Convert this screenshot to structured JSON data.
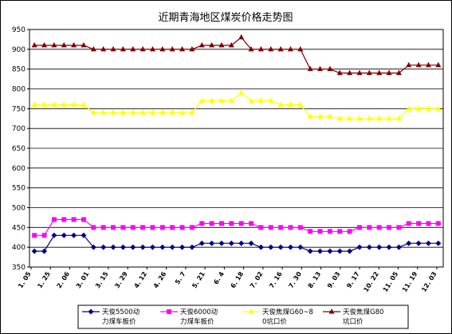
{
  "chart_data": {
    "type": "line",
    "title": "近期青海地区煤炭价格走势图",
    "xlabel": "",
    "ylabel": "",
    "ylim": [
      350,
      950
    ],
    "yticks": [
      350,
      400,
      450,
      500,
      550,
      600,
      650,
      700,
      750,
      800,
      850,
      900,
      950
    ],
    "grid": true,
    "legend_position": "bottom",
    "x_tick_labels": [
      "1. 05",
      "1. 25",
      "2. 06",
      "3. 01",
      "3. 15",
      "3. 29",
      "4. 12",
      "4. 26",
      "5. 7",
      "5. 21",
      "6. 4",
      "6. 18",
      "7. 02",
      "7. 16",
      "7. 30",
      "8. 13",
      "9. 03",
      "9. 17",
      "10. 22",
      "11. 05",
      "11. 19",
      "12. 03"
    ],
    "series": [
      {
        "name": "天俊5500动力煤车板价",
        "color": "#000080",
        "marker": "diamond",
        "values": [
          390,
          390,
          430,
          430,
          430,
          430,
          400,
          400,
          400,
          400,
          400,
          400,
          400,
          400,
          400,
          400,
          400,
          410,
          410,
          410,
          410,
          410,
          410,
          400,
          400,
          400,
          400,
          400,
          390,
          390,
          390,
          390,
          390,
          400,
          400,
          400,
          400,
          400,
          410,
          410,
          410,
          410
        ]
      },
      {
        "name": "天俊6000动力煤车板价",
        "color": "#ff00ff",
        "marker": "square",
        "values": [
          430,
          430,
          470,
          470,
          470,
          470,
          450,
          450,
          450,
          450,
          450,
          450,
          450,
          450,
          450,
          450,
          450,
          460,
          460,
          460,
          460,
          460,
          460,
          450,
          450,
          450,
          450,
          450,
          440,
          440,
          440,
          440,
          440,
          450,
          450,
          450,
          450,
          450,
          460,
          460,
          460,
          460
        ]
      },
      {
        "name": "天俊焦煤G60~80坑口价",
        "color": "#ffff00",
        "marker": "triangle",
        "values": [
          760,
          760,
          760,
          760,
          760,
          760,
          740,
          740,
          740,
          740,
          740,
          740,
          740,
          740,
          740,
          740,
          740,
          770,
          770,
          770,
          770,
          790,
          770,
          770,
          770,
          760,
          760,
          760,
          730,
          730,
          730,
          725,
          725,
          725,
          725,
          725,
          725,
          725,
          750,
          750,
          750,
          750
        ]
      },
      {
        "name": "天俊焦煤G80坑口价",
        "color": "#800000",
        "marker": "triangle",
        "values": [
          910,
          910,
          910,
          910,
          910,
          910,
          900,
          900,
          900,
          900,
          900,
          900,
          900,
          900,
          900,
          900,
          900,
          910,
          910,
          910,
          910,
          930,
          900,
          900,
          900,
          900,
          900,
          900,
          850,
          850,
          850,
          840,
          840,
          840,
          840,
          840,
          840,
          840,
          860,
          860,
          860,
          860
        ]
      }
    ]
  }
}
